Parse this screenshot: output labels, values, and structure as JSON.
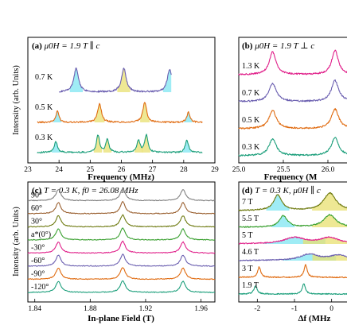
{
  "figure": {
    "panels": [
      {
        "id": "a",
        "label": "(a)",
        "label_rest": "μ0H = 1.9 T ∥ c",
        "ylabel": "Intensity (arb. Units)",
        "xlabel": "Frequency (MHz)",
        "xticks": [
          "23",
          "24",
          "25",
          "26",
          "27",
          "28",
          "29"
        ],
        "traces": [
          "0.7 K",
          "0.5 K",
          "0.3 K"
        ]
      },
      {
        "id": "b",
        "label": "(b)",
        "label_rest": "μ0H = 1.9 T ⊥ c",
        "xlabel": "Frequency (M",
        "xticks": [
          "25.0",
          "25.5",
          "26.0"
        ],
        "traces": [
          "1.3 K",
          "0.7 K",
          "0.5 K",
          "0.3 K"
        ]
      },
      {
        "id": "c",
        "label": "(c)",
        "label_rest": "T = 0.3 K, f0 = 26.08 MHz",
        "ylabel": "Intensity (arb. Units)",
        "xlabel": "In-plane Field (T)",
        "xticks": [
          "1.84",
          "1.88",
          "1.92",
          "1.96"
        ],
        "traces": [
          "90°",
          "60°",
          "30°",
          "a*(0°)",
          "-30°",
          "-60°",
          "-90°",
          "-120°"
        ]
      },
      {
        "id": "d",
        "label": "(d)",
        "label_rest": "T = 0.3 K, μ0H ∥ c",
        "xlabel": "Δf (MHz",
        "xticks": [
          "-2",
          "-1",
          "0"
        ],
        "traces": [
          "7 T",
          "5.5 T",
          "5 T",
          "4.6 T",
          "3 T",
          "1.9 T"
        ]
      }
    ],
    "colors": {
      "purple": "#6b5fb0",
      "orange": "#e06b10",
      "teal": "#1a9e7a",
      "pink": "#e0208a",
      "olive": "#6e7a10",
      "brown": "#9a6030",
      "green": "#3aa030",
      "cyan_fill": "#7fe6f2",
      "yellow_fill": "#e8e070"
    }
  },
  "chart_data": [
    {
      "type": "line",
      "panel": "a",
      "title": "μ0H = 1.9 T ∥ c",
      "xlabel": "Frequency (MHz)",
      "ylabel": "Intensity (arb. Units)",
      "xlim": [
        23,
        29
      ],
      "series": [
        {
          "name": "0.7 K",
          "color": "#6b5fb0",
          "baseline_offset": 2,
          "peaks": [
            {
              "x": 24.55,
              "h": 0.75,
              "w": 0.09
            },
            {
              "x": 26.08,
              "h": 0.75,
              "w": 0.09
            },
            {
              "x": 27.55,
              "h": 0.72,
              "w": 0.09
            }
          ],
          "x_range": [
            24.0,
            27.6
          ]
        },
        {
          "name": "0.5 K",
          "color": "#e06b10",
          "baseline_offset": 1,
          "peaks": [
            {
              "x": 23.95,
              "h": 0.35,
              "w": 0.06
            },
            {
              "x": 25.3,
              "h": 0.6,
              "w": 0.07
            },
            {
              "x": 26.75,
              "h": 0.65,
              "w": 0.07
            },
            {
              "x": 28.15,
              "h": 0.32,
              "w": 0.06
            }
          ],
          "x_range": [
            23.3,
            28.6
          ]
        },
        {
          "name": "0.3 K",
          "color": "#1a9e7a",
          "baseline_offset": 0,
          "peaks": [
            {
              "x": 23.9,
              "h": 0.35,
              "w": 0.06
            },
            {
              "x": 25.25,
              "h": 0.55,
              "w": 0.06
            },
            {
              "x": 25.55,
              "h": 0.4,
              "w": 0.06
            },
            {
              "x": 26.55,
              "h": 0.38,
              "w": 0.06
            },
            {
              "x": 26.8,
              "h": 0.55,
              "w": 0.06
            },
            {
              "x": 28.1,
              "h": 0.4,
              "w": 0.06
            }
          ],
          "x_range": [
            23.3,
            28.6
          ]
        }
      ]
    },
    {
      "type": "line",
      "panel": "b",
      "title": "μ0H = 1.9 T ⊥ c",
      "xlabel": "Frequency (M",
      "xlim": [
        25.0,
        26.25
      ],
      "series": [
        {
          "name": "1.3 K",
          "color": "#e0208a",
          "baseline_offset": 3,
          "peaks": [
            {
              "x": 25.38,
              "h": 0.75,
              "w": 0.045
            },
            {
              "x": 26.08,
              "h": 0.8,
              "w": 0.045
            }
          ]
        },
        {
          "name": "0.7 K",
          "color": "#6b5fb0",
          "baseline_offset": 2,
          "peaks": [
            {
              "x": 25.38,
              "h": 0.6,
              "w": 0.05
            },
            {
              "x": 26.08,
              "h": 0.7,
              "w": 0.05
            }
          ]
        },
        {
          "name": "0.5 K",
          "color": "#e06b10",
          "baseline_offset": 1,
          "peaks": [
            {
              "x": 25.38,
              "h": 0.6,
              "w": 0.05
            },
            {
              "x": 26.08,
              "h": 0.65,
              "w": 0.05
            }
          ]
        },
        {
          "name": "0.3 K",
          "color": "#1a9e7a",
          "baseline_offset": 0,
          "peaks": [
            {
              "x": 25.38,
              "h": 0.55,
              "w": 0.05
            },
            {
              "x": 26.08,
              "h": 0.6,
              "w": 0.05
            }
          ]
        }
      ]
    },
    {
      "type": "line",
      "panel": "c",
      "title": "T = 0.3 K, f0 = 26.08 MHz",
      "xlabel": "In-plane Field (T)",
      "ylabel": "Intensity (arb. Units)",
      "xlim": [
        1.835,
        1.97
      ],
      "series": [
        {
          "name": "90°",
          "color": "#808080",
          "baseline_offset": 7,
          "peaks": [
            {
              "x": 1.857,
              "h": 0.7,
              "w": 0.0022
            },
            {
              "x": 1.9035,
              "h": 0.75,
              "w": 0.0022
            },
            {
              "x": 1.947,
              "h": 0.7,
              "w": 0.0022
            }
          ]
        },
        {
          "name": "60°",
          "color": "#9a6030",
          "baseline_offset": 6,
          "peaks": [
            {
              "x": 1.857,
              "h": 0.7,
              "w": 0.0022
            },
            {
              "x": 1.9035,
              "h": 0.75,
              "w": 0.0022
            },
            {
              "x": 1.947,
              "h": 0.7,
              "w": 0.0022
            }
          ]
        },
        {
          "name": "30°",
          "color": "#6e7a10",
          "baseline_offset": 5,
          "peaks": [
            {
              "x": 1.857,
              "h": 0.7,
              "w": 0.0022
            },
            {
              "x": 1.9035,
              "h": 0.75,
              "w": 0.0022
            },
            {
              "x": 1.947,
              "h": 0.7,
              "w": 0.0022
            }
          ]
        },
        {
          "name": "a*(0°)",
          "color": "#3aa030",
          "baseline_offset": 4,
          "peaks": [
            {
              "x": 1.857,
              "h": 0.7,
              "w": 0.0022
            },
            {
              "x": 1.9035,
              "h": 0.75,
              "w": 0.0022
            },
            {
              "x": 1.947,
              "h": 0.7,
              "w": 0.0022
            }
          ]
        },
        {
          "name": "-30°",
          "color": "#e0208a",
          "baseline_offset": 3,
          "peaks": [
            {
              "x": 1.857,
              "h": 0.7,
              "w": 0.0022
            },
            {
              "x": 1.9035,
              "h": 0.75,
              "w": 0.0022
            },
            {
              "x": 1.947,
              "h": 0.7,
              "w": 0.0022
            }
          ]
        },
        {
          "name": "-60°",
          "color": "#6b5fb0",
          "baseline_offset": 2,
          "peaks": [
            {
              "x": 1.857,
              "h": 0.7,
              "w": 0.0022
            },
            {
              "x": 1.9035,
              "h": 0.75,
              "w": 0.0022
            },
            {
              "x": 1.947,
              "h": 0.7,
              "w": 0.0022
            }
          ]
        },
        {
          "name": "-90°",
          "color": "#e06b10",
          "baseline_offset": 1,
          "peaks": [
            {
              "x": 1.857,
              "h": 0.7,
              "w": 0.0022
            },
            {
              "x": 1.9035,
              "h": 0.75,
              "w": 0.0022
            },
            {
              "x": 1.947,
              "h": 0.7,
              "w": 0.0022
            }
          ]
        },
        {
          "name": "-120°",
          "color": "#1a9e7a",
          "baseline_offset": 0,
          "peaks": [
            {
              "x": 1.857,
              "h": 0.7,
              "w": 0.0022
            },
            {
              "x": 1.9035,
              "h": 0.75,
              "w": 0.0022
            },
            {
              "x": 1.947,
              "h": 0.7,
              "w": 0.0022
            }
          ]
        }
      ]
    },
    {
      "type": "line",
      "panel": "d",
      "title": "T = 0.3 K, μ0H ∥ c",
      "xlabel": "Δf (MHz",
      "xlim": [
        -2.5,
        0.5
      ],
      "series": [
        {
          "name": "7 T",
          "color": "#6e7a10",
          "baseline_offset": 5,
          "peaks": [
            {
              "x": -1.45,
              "h": 0.75,
              "w": 0.13
            },
            {
              "x": -0.05,
              "h": 0.85,
              "w": 0.2
            }
          ]
        },
        {
          "name": "5.5 T",
          "color": "#3aa030",
          "baseline_offset": 4,
          "peaks": [
            {
              "x": -1.3,
              "h": 0.55,
              "w": 0.13
            },
            {
              "x": -0.05,
              "h": 0.6,
              "w": 0.2
            }
          ]
        },
        {
          "name": "5 T",
          "color": "#e0208a",
          "baseline_offset": 3,
          "peaks": [
            {
              "x": -1.0,
              "h": 0.3,
              "w": 0.35
            },
            {
              "x": -0.05,
              "h": 0.3,
              "w": 0.3
            }
          ]
        },
        {
          "name": "4.6 T",
          "color": "#6b5fb0",
          "baseline_offset": 2,
          "peaks": [
            {
              "x": -0.6,
              "h": 0.3,
              "w": 0.3
            },
            {
              "x": 0.2,
              "h": 0.25,
              "w": 0.3
            }
          ]
        },
        {
          "name": "3 T",
          "color": "#e06b10",
          "baseline_offset": 1,
          "peaks": [
            {
              "x": -1.95,
              "h": 0.5,
              "w": 0.05
            },
            {
              "x": -0.7,
              "h": 0.6,
              "w": 0.05
            }
          ]
        },
        {
          "name": "1.9 T",
          "color": "#1a9e7a",
          "baseline_offset": 0,
          "peaks": [
            {
              "x": -2.05,
              "h": 0.4,
              "w": 0.05
            },
            {
              "x": -0.75,
              "h": 0.5,
              "w": 0.05
            }
          ]
        }
      ]
    }
  ]
}
